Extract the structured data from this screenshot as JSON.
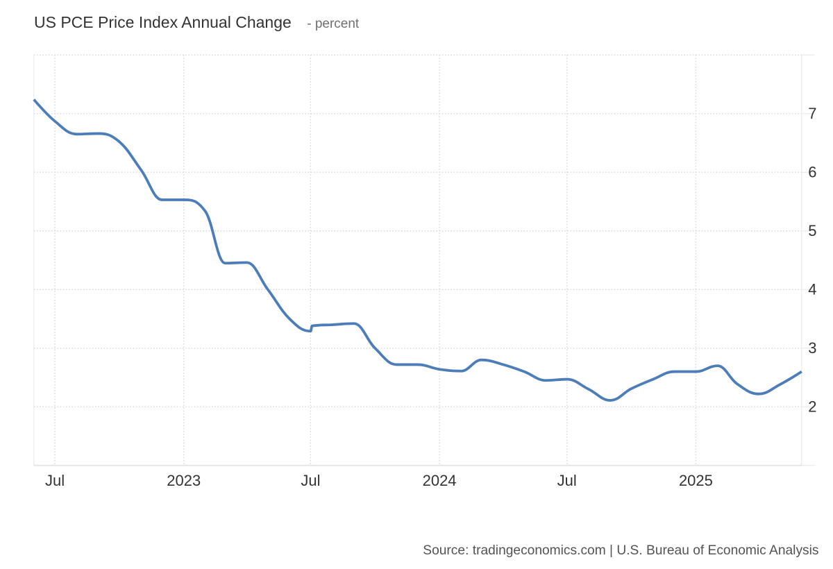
{
  "chart_data": {
    "type": "line",
    "title": "US PCE Price Index Annual Change",
    "subtitle": "- percent",
    "source": "Source: tradingeconomics.com | U.S. Bureau of Economic Analysis",
    "xlabel": "",
    "ylabel": "",
    "ylim": [
      1,
      8
    ],
    "ytick_interval": 1,
    "ytick_labels": [
      "2",
      "3",
      "4",
      "5",
      "6",
      "7"
    ],
    "xlim": [
      "2022-06-01",
      "2025-06-01"
    ],
    "xticks": [
      {
        "date": "2022-07-01",
        "label": "Jul"
      },
      {
        "date": "2023-01-01",
        "label": "2023"
      },
      {
        "date": "2023-07-01",
        "label": "Jul"
      },
      {
        "date": "2024-01-01",
        "label": "2024"
      },
      {
        "date": "2024-07-01",
        "label": "Jul"
      },
      {
        "date": "2025-01-01",
        "label": "2025"
      }
    ],
    "grid": "dotted",
    "legend": false,
    "series": [
      {
        "name": "US PCE Price Index Annual Change",
        "points": [
          [
            "2022-06-01",
            7.24
          ],
          [
            "2022-07-01",
            6.87
          ],
          [
            "2022-08-01",
            6.65
          ],
          [
            "2022-09-01",
            6.66
          ],
          [
            "2022-10-01",
            6.52
          ],
          [
            "2022-11-01",
            6.04
          ],
          [
            "2022-12-01",
            5.53
          ],
          [
            "2023-01-01",
            5.53
          ],
          [
            "2023-02-01",
            5.33
          ],
          [
            "2023-03-01",
            4.45
          ],
          [
            "2023-04-01",
            4.46
          ],
          [
            "2023-05-01",
            4.0
          ],
          [
            "2023-06-01",
            3.5
          ],
          [
            "2023-07-01",
            3.29
          ],
          [
            "2023-07-03",
            3.38
          ],
          [
            "2023-08-01",
            3.4
          ],
          [
            "2023-09-01",
            3.42
          ],
          [
            "2023-10-01",
            3.0
          ],
          [
            "2023-11-01",
            2.72
          ],
          [
            "2023-12-01",
            2.72
          ],
          [
            "2024-01-01",
            2.64
          ],
          [
            "2024-02-01",
            2.61
          ],
          [
            "2024-03-01",
            2.8
          ],
          [
            "2024-04-01",
            2.72
          ],
          [
            "2024-05-01",
            2.6
          ],
          [
            "2024-06-01",
            2.45
          ],
          [
            "2024-07-01",
            2.47
          ],
          [
            "2024-08-01",
            2.3
          ],
          [
            "2024-09-01",
            2.11
          ],
          [
            "2024-10-01",
            2.31
          ],
          [
            "2024-11-01",
            2.47
          ],
          [
            "2024-12-01",
            2.6
          ],
          [
            "2025-01-01",
            2.6
          ],
          [
            "2025-02-01",
            2.7
          ],
          [
            "2025-03-01",
            2.39
          ],
          [
            "2025-04-01",
            2.22
          ],
          [
            "2025-05-01",
            2.38
          ],
          [
            "2025-06-01",
            2.6
          ]
        ]
      }
    ]
  },
  "colors": {
    "line": "#4d7db9",
    "grid_dots": "#d8d8d8",
    "axis_line": "#e6e6e6",
    "tick_label": "#333333",
    "title": "#333333",
    "subtitle": "#707070",
    "source": "#535353"
  }
}
